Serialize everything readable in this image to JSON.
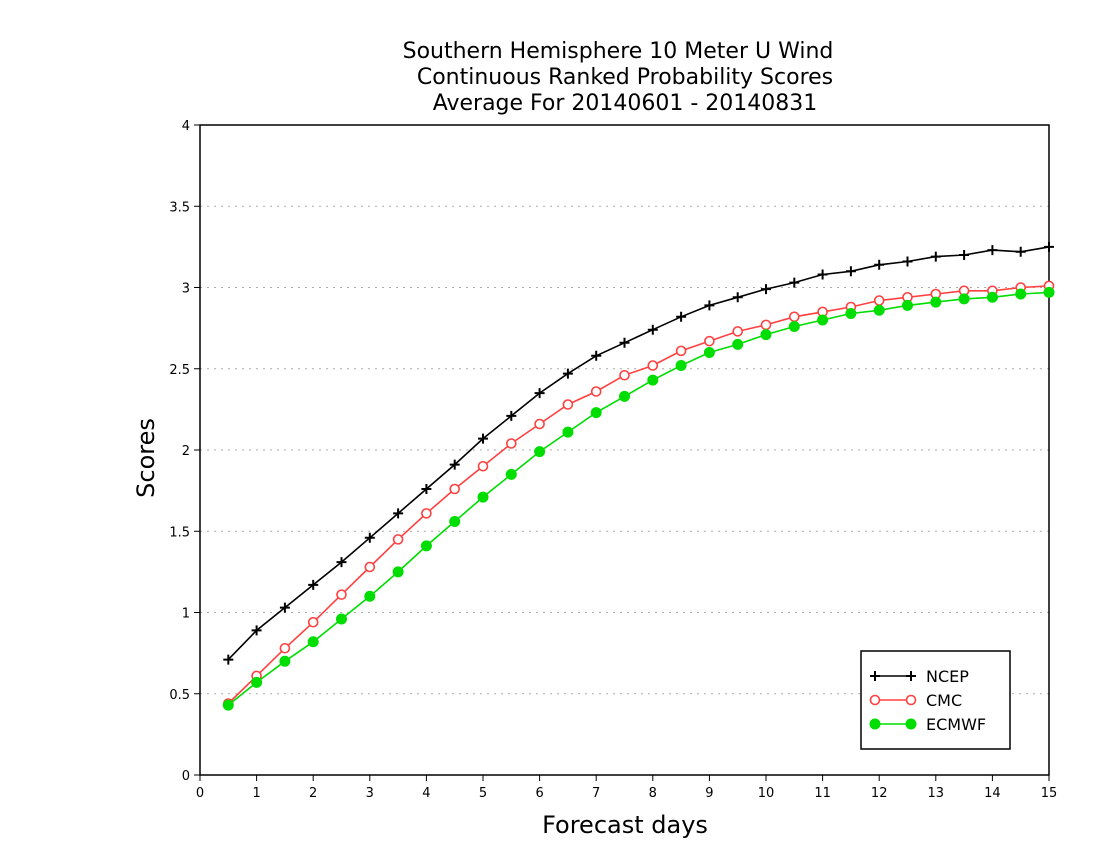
{
  "chart_data": {
    "type": "line",
    "title_lines": [
      "Southern Hemisphere 10 Meter U Wind",
      "Continuous Ranked Probability Scores",
      "Average For 20140601 - 20140831"
    ],
    "xlabel": "Forecast days",
    "ylabel": "Scores",
    "xlim": [
      0,
      15
    ],
    "ylim": [
      0,
      4
    ],
    "xticks": [
      0,
      1,
      2,
      3,
      4,
      5,
      6,
      7,
      8,
      9,
      10,
      11,
      12,
      13,
      14,
      15
    ],
    "xtick_labels": [
      "0",
      "1",
      "2",
      "3",
      "4",
      "5",
      "6",
      "7",
      "8",
      "9",
      "10",
      "11",
      "12",
      "13",
      "14",
      "15"
    ],
    "yticks": [
      0,
      0.5,
      1,
      1.5,
      2,
      2.5,
      3,
      3.5,
      4
    ],
    "ytick_labels": [
      "0",
      "0.5",
      "1",
      "1.5",
      "2",
      "2.5",
      "3",
      "3.5",
      "4"
    ],
    "grid": "horizontal dotted",
    "legend_position": "bottom-right",
    "x": [
      0.5,
      1,
      1.5,
      2,
      2.5,
      3,
      3.5,
      4,
      4.5,
      5,
      5.5,
      6,
      6.5,
      7,
      7.5,
      8,
      8.5,
      9,
      9.5,
      10,
      10.5,
      11,
      11.5,
      12,
      12.5,
      13,
      13.5,
      14,
      14.5,
      15
    ],
    "series": [
      {
        "name": "NCEP",
        "color": "#000000",
        "marker": "plus",
        "values": [
          0.71,
          0.89,
          1.03,
          1.17,
          1.31,
          1.46,
          1.61,
          1.76,
          1.91,
          2.07,
          2.21,
          2.35,
          2.47,
          2.58,
          2.66,
          2.74,
          2.82,
          2.89,
          2.94,
          2.99,
          3.03,
          3.08,
          3.1,
          3.14,
          3.16,
          3.19,
          3.2,
          3.23,
          3.22,
          3.25
        ]
      },
      {
        "name": "CMC",
        "color": "#ff4040",
        "marker": "open-circle",
        "values": [
          0.44,
          0.61,
          0.78,
          0.94,
          1.11,
          1.28,
          1.45,
          1.61,
          1.76,
          1.9,
          2.04,
          2.16,
          2.28,
          2.36,
          2.46,
          2.52,
          2.61,
          2.67,
          2.73,
          2.77,
          2.82,
          2.85,
          2.88,
          2.92,
          2.94,
          2.96,
          2.98,
          2.98,
          3.0,
          3.01
        ]
      },
      {
        "name": "ECMWF",
        "color": "#00dd00",
        "marker": "filled-circle",
        "values": [
          0.43,
          0.57,
          0.7,
          0.82,
          0.96,
          1.1,
          1.25,
          1.41,
          1.56,
          1.71,
          1.85,
          1.99,
          2.11,
          2.23,
          2.33,
          2.43,
          2.52,
          2.6,
          2.65,
          2.71,
          2.76,
          2.8,
          2.84,
          2.86,
          2.89,
          2.91,
          2.93,
          2.94,
          2.96,
          2.97
        ]
      }
    ]
  }
}
